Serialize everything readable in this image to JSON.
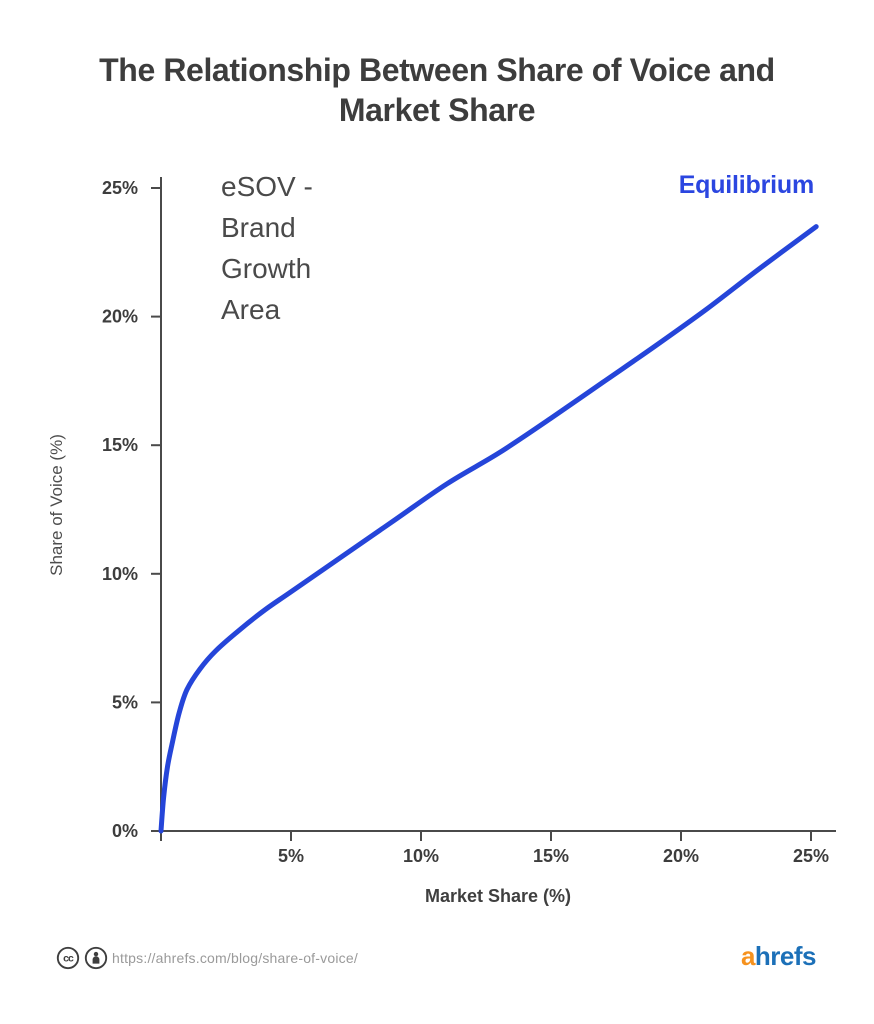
{
  "title": "The Relationship Between Share of Voice and Market Share",
  "axes": {
    "x_label": "Market Share (%)",
    "y_label": "Share of Voice (%)"
  },
  "annotation": {
    "esov_label": "eSOV - Brand Growth Area"
  },
  "legend": {
    "equilibrium_label": "Equilibrium"
  },
  "chart_data": {
    "type": "line",
    "title": "The Relationship Between Share of Voice and Market Share",
    "xlabel": "Market Share (%)",
    "ylabel": "Share of Voice (%)",
    "xlim": [
      0,
      26
    ],
    "ylim": [
      0,
      25.5
    ],
    "grid": false,
    "x_ticks": [
      0,
      5,
      10,
      15,
      20,
      25
    ],
    "x_tick_labels": [
      "",
      "5%",
      "10%",
      "15%",
      "20%",
      "25%"
    ],
    "y_ticks": [
      0,
      5,
      10,
      15,
      20,
      25
    ],
    "y_tick_labels": [
      "0%",
      "5%",
      "10%",
      "15%",
      "20%",
      "25%"
    ],
    "legend_position": "top-right",
    "series": [
      {
        "name": "Equilibrium",
        "color": "#2545d9",
        "points": [
          [
            0,
            0
          ],
          [
            0.1,
            1.3
          ],
          [
            0.25,
            2.5
          ],
          [
            0.45,
            3.5
          ],
          [
            0.7,
            4.6
          ],
          [
            1.0,
            5.5
          ],
          [
            1.5,
            6.3
          ],
          [
            2.1,
            7.0
          ],
          [
            3.0,
            7.8
          ],
          [
            4.0,
            8.6
          ],
          [
            5.0,
            9.3
          ],
          [
            7.0,
            10.7
          ],
          [
            9.0,
            12.1
          ],
          [
            11.0,
            13.5
          ],
          [
            13.0,
            14.7
          ],
          [
            15.0,
            16.05
          ],
          [
            17.0,
            17.45
          ],
          [
            19.0,
            18.85
          ],
          [
            21.0,
            20.3
          ],
          [
            23.0,
            21.85
          ],
          [
            25.2,
            23.5
          ]
        ]
      }
    ],
    "annotations": [
      {
        "text": "eSOV - Brand Growth Area",
        "position": "top-left-inside-plot"
      },
      {
        "text": "Equilibrium",
        "position": "top-right-above-curve"
      }
    ]
  },
  "footer": {
    "license_icon_1": "cc-icon",
    "license_icon_2": "attribution-person-icon",
    "url": "https://ahrefs.com/blog/share-of-voice/",
    "logo": {
      "first": "a",
      "rest": "hrefs"
    }
  },
  "colors": {
    "curve": "#2545d9",
    "equilibrium_text": "#2b46e0",
    "title_text": "#3d3d3d",
    "axis_line": "#4a4a4a",
    "tick_label": "#3d3d3d",
    "annotation_text": "#4a4a4a",
    "url_text": "#9a9a9a",
    "logo_orange": "#f6921e",
    "logo_blue": "#1c70b8"
  }
}
